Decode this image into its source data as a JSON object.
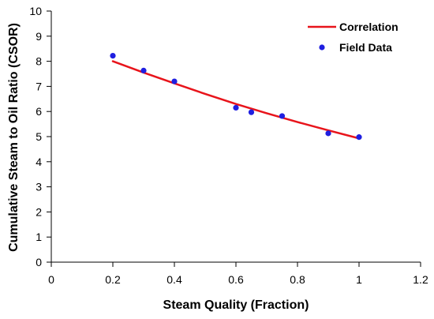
{
  "chart_data": {
    "type": "scatter",
    "title": "",
    "xlabel": "Steam Quality (Fraction)",
    "ylabel": "Cumulative Steam to Oil Ratio (CSOR)",
    "xlim": [
      0,
      1.2
    ],
    "ylim": [
      0,
      10
    ],
    "x_ticks": [
      "0",
      "0.2",
      "0.4",
      "0.6",
      "0.8",
      "1",
      "1.2"
    ],
    "y_ticks": [
      "0",
      "1",
      "2",
      "3",
      "4",
      "5",
      "6",
      "7",
      "8",
      "9",
      "10"
    ],
    "grid": false,
    "legend_position": "top-right",
    "series": [
      {
        "name": "Correlation",
        "kind": "line",
        "color": "#e8141b",
        "x": [
          0.2,
          0.3,
          0.4,
          0.5,
          0.6,
          0.7,
          0.8,
          0.9,
          1.0
        ],
        "y": [
          8.0,
          7.55,
          7.12,
          6.7,
          6.3,
          5.93,
          5.58,
          5.25,
          4.93
        ]
      },
      {
        "name": "Field Data",
        "kind": "scatter",
        "color": "#1f1fe0",
        "x": [
          0.2,
          0.3,
          0.4,
          0.6,
          0.65,
          0.75,
          0.9,
          1.0
        ],
        "y": [
          8.22,
          7.63,
          7.2,
          6.15,
          5.97,
          5.82,
          5.13,
          4.98
        ]
      }
    ]
  }
}
